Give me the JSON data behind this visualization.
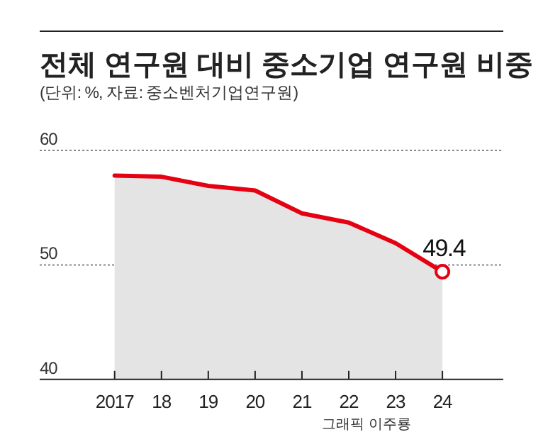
{
  "chart_data": {
    "type": "area",
    "title": "전체 연구원 대비 중소기업 연구원 비중",
    "subtitle": "(단위: %, 자료: 중소벤처기업연구원)",
    "annotations": [
      "그래픽 이주룡"
    ],
    "x": [
      2017,
      2018,
      2019,
      2020,
      2021,
      2022,
      2023,
      2024
    ],
    "xlim": [
      2015.4,
      2025.3
    ],
    "xticks": [
      {
        "value": 2017,
        "label": "2017"
      },
      {
        "value": 2018,
        "label": "18"
      },
      {
        "value": 2019,
        "label": "19"
      },
      {
        "value": 2020,
        "label": "20"
      },
      {
        "value": 2021,
        "label": "21"
      },
      {
        "value": 2022,
        "label": "22"
      },
      {
        "value": 2023,
        "label": "23"
      },
      {
        "value": 2024,
        "label": "24"
      }
    ],
    "ylim": [
      40,
      60
    ],
    "yticks": [
      40,
      50,
      60
    ],
    "grid": "y",
    "series": [
      {
        "color": "#e50012",
        "values": [
          57.8,
          57.7,
          56.9,
          56.5,
          54.5,
          53.7,
          51.9,
          49.4
        ],
        "value_labels": [
          null,
          null,
          null,
          null,
          null,
          null,
          null,
          "49.4"
        ]
      },
      {
        "type": "scatter",
        "color": "#e50012",
        "marker": "circle",
        "x": [
          2024
        ],
        "values": [
          49.4
        ]
      }
    ]
  }
}
